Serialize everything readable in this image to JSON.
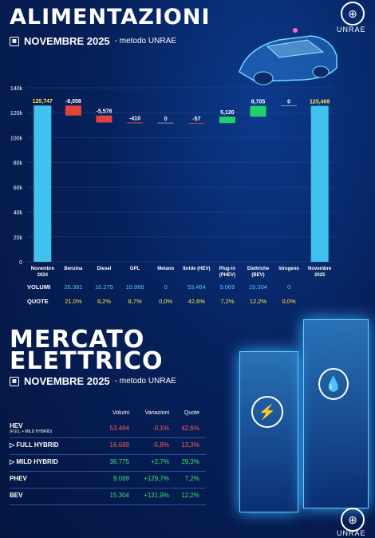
{
  "header": {
    "title": "ALIMENTAZIONI",
    "subtitle": "NOVEMBRE 2025",
    "meta": "- metodo UNRAE"
  },
  "logo": {
    "text": "UNRAE"
  },
  "chart_data": {
    "type": "waterfall",
    "ylim": [
      0,
      140000
    ],
    "yticks": [
      "0",
      "20k",
      "40k",
      "60k",
      "80k",
      "100k",
      "120k",
      "140k"
    ],
    "categories": [
      "Novembre 2024",
      "Benzina",
      "Diesel",
      "GPL",
      "Metano",
      "Ibride (HEV)",
      "Plug-in (PHEV)",
      "Elettriche (BEV)",
      "Idrogeno",
      "Novembre 2025"
    ],
    "cat_lines": [
      [
        "Novembre",
        "2024"
      ],
      [
        "Benzina"
      ],
      [
        "Diesel"
      ],
      [
        "GPL"
      ],
      [
        "Metano"
      ],
      [
        "Ibride (HEV)"
      ],
      [
        "Plug-in",
        "(PHEV)"
      ],
      [
        "Elettriche",
        "(BEV)"
      ],
      [
        "Idrogeno"
      ],
      [
        "Novembre",
        "2025"
      ]
    ],
    "values": [
      125747,
      -8058,
      -5578,
      -410,
      0,
      -57,
      5120,
      8705,
      0,
      125469
    ],
    "labels": [
      "125,747",
      "-8,058",
      "-5,578",
      "-410",
      "0",
      "-57",
      "5,120",
      "8,705",
      "0",
      "125,469"
    ],
    "kinds": [
      "total",
      "delta",
      "delta",
      "delta",
      "delta",
      "delta",
      "delta",
      "delta",
      "delta",
      "total"
    ],
    "colors": {
      "total": "#3fc3ee",
      "decrease": "#e0443a",
      "increase": "#22d06a"
    }
  },
  "rows": {
    "volumi_label": "VOLUMI",
    "volumi": [
      "26.391",
      "10.275",
      "10.966",
      "0",
      "53.464",
      "9.069",
      "15.304",
      "0"
    ],
    "quote_label": "QUOTE",
    "quote": [
      "21,0%",
      "8,2%",
      "8,7%",
      "0,0%",
      "42,6%",
      "7,2%",
      "12,2%",
      "0,0%"
    ]
  },
  "market": {
    "title_line1": "MERCATO",
    "title_line2": "ELETTRICO",
    "subtitle": "NOVEMBRE 2025",
    "meta": "- metodo UNRAE",
    "headers": [
      "Volumi",
      "Variazioni",
      "Quote"
    ],
    "rows": [
      {
        "label": "HEV",
        "small": "(FULL + MILD HYBRID)",
        "volumi": "53.464",
        "variazioni": "-0,1%",
        "quote": "42,6%",
        "color": "#ff5a5a"
      },
      {
        "label": "▷  FULL HYBRID",
        "small": "",
        "volumi": "16.689",
        "variazioni": "-5,8%",
        "quote": "13,3%",
        "color": "#ff5a5a"
      },
      {
        "label": "▷  MILD HYBRID",
        "small": "",
        "volumi": "36.775",
        "variazioni": "+2,7%",
        "quote": "29,3%",
        "color": "#3ee07a"
      },
      {
        "label": "PHEV",
        "small": "",
        "volumi": "9.069",
        "variazioni": "+129,7%",
        "quote": "7,2%",
        "color": "#3ee07a"
      },
      {
        "label": "BEV",
        "small": "",
        "volumi": "15.304",
        "variazioni": "+131,9%",
        "quote": "12,2%",
        "color": "#3ee07a"
      }
    ]
  }
}
